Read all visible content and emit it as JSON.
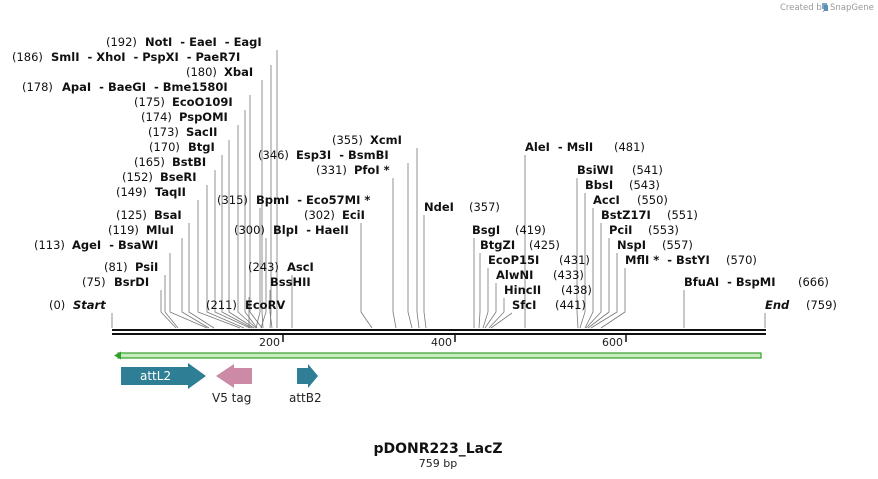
{
  "credit": {
    "prefix": "Created by",
    "brand": "SnapGene"
  },
  "title": "pDONR223_LacZ",
  "subtitle": "759 bp",
  "ticks": [
    "200",
    "400",
    "600"
  ],
  "sites": [
    {
      "id": "notI",
      "num": "(192)",
      "name": "NotI  - EaeI  - EagI"
    },
    {
      "id": "smlI",
      "num": "(186)",
      "name": "SmlI  - XhoI  - PspXI  - PaeR7I"
    },
    {
      "id": "xbaI",
      "num": "(180)",
      "name": "XbaI"
    },
    {
      "id": "apaI",
      "num": "(178)",
      "name": "ApaI  - BaeGI  - Bme1580I"
    },
    {
      "id": "ecoO109I",
      "num": "(175)",
      "name": "EcoO109I"
    },
    {
      "id": "pspOMI",
      "num": "(174)",
      "name": "PspOMI"
    },
    {
      "id": "sacII",
      "num": "(173)",
      "name": "SacII"
    },
    {
      "id": "btgI",
      "num": "(170)",
      "name": "BtgI"
    },
    {
      "id": "bstBI",
      "num": "(165)",
      "name": "BstBI"
    },
    {
      "id": "bseRI",
      "num": "(152)",
      "name": "BseRI"
    },
    {
      "id": "taqII",
      "num": "(149)",
      "name": "TaqII"
    },
    {
      "id": "bsaI",
      "num": "(125)",
      "name": "BsaI"
    },
    {
      "id": "mluI",
      "num": "(119)",
      "name": "MluI"
    },
    {
      "id": "ageI",
      "num": "(113)",
      "name": "AgeI  - BsaWI"
    },
    {
      "id": "psiI",
      "num": "(81)",
      "name": "PsiI"
    },
    {
      "id": "bsrDI",
      "num": "(75)",
      "name": "BsrDI"
    },
    {
      "id": "start",
      "num": "(0)",
      "name": "Start"
    },
    {
      "id": "ecoRV",
      "num": "(211)",
      "name": "EcoRV"
    },
    {
      "id": "bssHII",
      "num": "",
      "name": "BssHII"
    },
    {
      "id": "ascI",
      "num": "(243)",
      "name": "AscI"
    },
    {
      "id": "blpI",
      "num": "(300)",
      "name": "BlpI  - HaeII"
    },
    {
      "id": "bpmI",
      "num": "(315)",
      "name": "BpmI  - Eco57MI *"
    },
    {
      "id": "eciI",
      "num": "(302)",
      "name": "EciI"
    },
    {
      "id": "pfoI",
      "num": "(331)",
      "name": "PfoI *"
    },
    {
      "id": "esp3I",
      "num": "(346)",
      "name": "Esp3I  - BsmBI"
    },
    {
      "id": "xcmI",
      "num": "(355)",
      "name": "XcmI"
    },
    {
      "id": "ndeI",
      "num": "(357)",
      "name": "NdeI"
    },
    {
      "id": "aleI",
      "num": "(481)",
      "name": "AleI  - MslI"
    },
    {
      "id": "bsgI",
      "num": "(419)",
      "name": "BsgI"
    },
    {
      "id": "btgZI",
      "num": "(425)",
      "name": "BtgZI"
    },
    {
      "id": "ecoP15I",
      "num": "(431)",
      "name": "EcoP15I"
    },
    {
      "id": "alwNI",
      "num": "(433)",
      "name": "AlwNI"
    },
    {
      "id": "hincII",
      "num": "(438)",
      "name": "HincII"
    },
    {
      "id": "sfcI",
      "num": "(441)",
      "name": "SfcI"
    },
    {
      "id": "bsiWI",
      "num": "(541)",
      "name": "BsiWI"
    },
    {
      "id": "bbsI",
      "num": "(543)",
      "name": "BbsI"
    },
    {
      "id": "accI",
      "num": "(550)",
      "name": "AccI"
    },
    {
      "id": "bstZ17I",
      "num": "(551)",
      "name": "BstZ17I"
    },
    {
      "id": "pciI",
      "num": "(553)",
      "name": "PciI"
    },
    {
      "id": "nspI",
      "num": "(557)",
      "name": "NspI"
    },
    {
      "id": "mflI",
      "num": "(570)",
      "name": "MflI *  - BstYI"
    },
    {
      "id": "bfuAI",
      "num": "(666)",
      "name": "BfuAI  - BspMI"
    },
    {
      "id": "end",
      "num": "(759)",
      "name": "End"
    }
  ],
  "features": [
    {
      "id": "attL2",
      "label": "attL2",
      "color": "#2e7f95"
    },
    {
      "id": "v5",
      "label": "V5 tag",
      "color": "#cc8aa6"
    },
    {
      "id": "attB2",
      "label": "attB2",
      "color": "#2e7f95"
    }
  ],
  "orf_color": "#33a02c",
  "orf_fill": "#c8ecc0"
}
